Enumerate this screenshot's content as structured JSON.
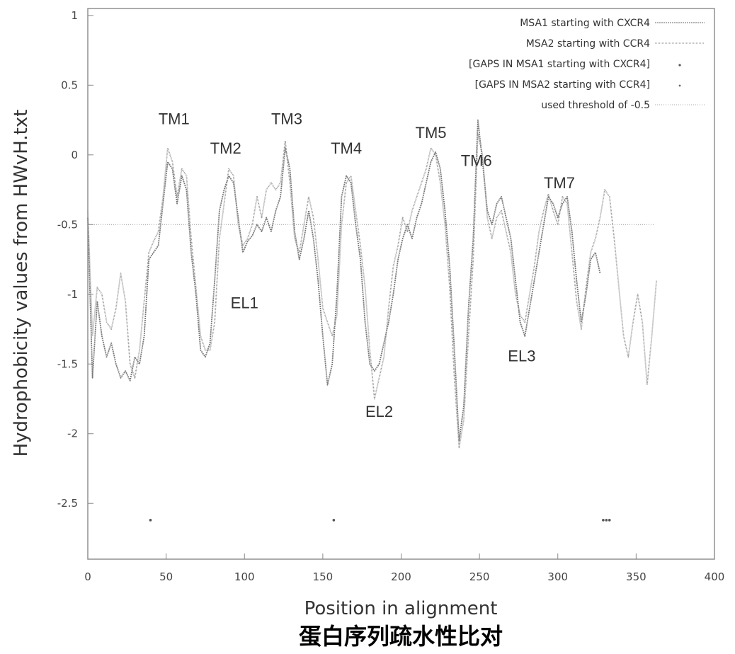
{
  "chart_data": {
    "type": "line",
    "xlabel": "Position in alignment",
    "ylabel": "Hydrophobicity values from HWvH.txt",
    "caption": "蛋白序列疏水性比对",
    "xlim": [
      0,
      400
    ],
    "ylim": [
      -2.9,
      1.05
    ],
    "xticks": [
      0,
      50,
      100,
      150,
      200,
      250,
      300,
      350,
      400
    ],
    "yticks": [
      1,
      0.5,
      0,
      -0.5,
      -1,
      -1.5,
      -2,
      -2.5
    ],
    "threshold": -0.5,
    "legend_position": "top-right",
    "legend": [
      "MSA1 starting with CXCR4",
      "MSA2 starting with CCR4",
      "[GAPS IN MSA1 starting with CXCR4]",
      "[GAPS IN MSA2 starting with CCR4]",
      "used threshold of -0.5"
    ],
    "annotations": [
      {
        "text": "TM1",
        "x": 55,
        "y": 0.22
      },
      {
        "text": "TM2",
        "x": 88,
        "y": 0.01
      },
      {
        "text": "TM3",
        "x": 127,
        "y": 0.22
      },
      {
        "text": "TM4",
        "x": 165,
        "y": 0.01
      },
      {
        "text": "TM5",
        "x": 219,
        "y": 0.12
      },
      {
        "text": "TM6",
        "x": 248,
        "y": -0.08
      },
      {
        "text": "TM7",
        "x": 301,
        "y": -0.24
      },
      {
        "text": "EL1",
        "x": 100,
        "y": -1.1
      },
      {
        "text": "EL2",
        "x": 186,
        "y": -1.88
      },
      {
        "text": "EL3",
        "x": 277,
        "y": -1.48
      }
    ],
    "series": [
      {
        "values": [
          [
            0,
            -0.45
          ],
          [
            3,
            -1.6
          ],
          [
            6,
            -1.05
          ],
          [
            9,
            -1.3
          ],
          [
            12,
            -1.45
          ],
          [
            15,
            -1.35
          ],
          [
            18,
            -1.5
          ],
          [
            21,
            -1.6
          ],
          [
            24,
            -1.55
          ],
          [
            27,
            -1.62
          ],
          [
            30,
            -1.45
          ],
          [
            33,
            -1.5
          ],
          [
            36,
            -1.3
          ],
          [
            39,
            -0.75
          ],
          [
            42,
            -0.7
          ],
          [
            45,
            -0.65
          ],
          [
            48,
            -0.35
          ],
          [
            51,
            -0.05
          ],
          [
            54,
            -0.1
          ],
          [
            57,
            -0.35
          ],
          [
            60,
            -0.15
          ],
          [
            63,
            -0.25
          ],
          [
            66,
            -0.7
          ],
          [
            69,
            -1.0
          ],
          [
            72,
            -1.4
          ],
          [
            75,
            -1.45
          ],
          [
            78,
            -1.35
          ],
          [
            81,
            -0.9
          ],
          [
            84,
            -0.4
          ],
          [
            87,
            -0.25
          ],
          [
            90,
            -0.15
          ],
          [
            93,
            -0.2
          ],
          [
            96,
            -0.45
          ],
          [
            99,
            -0.7
          ],
          [
            102,
            -0.62
          ],
          [
            105,
            -0.58
          ],
          [
            108,
            -0.5
          ],
          [
            111,
            -0.55
          ],
          [
            114,
            -0.45
          ],
          [
            117,
            -0.55
          ],
          [
            120,
            -0.4
          ],
          [
            123,
            -0.3
          ],
          [
            126,
            0.05
          ],
          [
            129,
            -0.1
          ],
          [
            132,
            -0.55
          ],
          [
            135,
            -0.75
          ],
          [
            138,
            -0.6
          ],
          [
            141,
            -0.4
          ],
          [
            144,
            -0.6
          ],
          [
            147,
            -0.9
          ],
          [
            150,
            -1.3
          ],
          [
            153,
            -1.65
          ],
          [
            156,
            -1.5
          ],
          [
            159,
            -1.0
          ],
          [
            162,
            -0.3
          ],
          [
            165,
            -0.15
          ],
          [
            168,
            -0.2
          ],
          [
            171,
            -0.5
          ],
          [
            174,
            -0.75
          ],
          [
            177,
            -1.2
          ],
          [
            180,
            -1.5
          ],
          [
            183,
            -1.55
          ],
          [
            186,
            -1.5
          ],
          [
            189,
            -1.35
          ],
          [
            192,
            -1.2
          ],
          [
            195,
            -1.0
          ],
          [
            198,
            -0.75
          ],
          [
            201,
            -0.6
          ],
          [
            204,
            -0.5
          ],
          [
            207,
            -0.6
          ],
          [
            210,
            -0.45
          ],
          [
            213,
            -0.35
          ],
          [
            216,
            -0.2
          ],
          [
            219,
            -0.05
          ],
          [
            222,
            0.02
          ],
          [
            225,
            -0.1
          ],
          [
            228,
            -0.4
          ],
          [
            231,
            -0.8
          ],
          [
            234,
            -1.4
          ],
          [
            237,
            -2.05
          ],
          [
            240,
            -1.8
          ],
          [
            243,
            -1.1
          ],
          [
            246,
            -0.6
          ],
          [
            249,
            0.25
          ],
          [
            252,
            -0.05
          ],
          [
            255,
            -0.4
          ],
          [
            258,
            -0.5
          ],
          [
            261,
            -0.35
          ],
          [
            264,
            -0.3
          ],
          [
            267,
            -0.45
          ],
          [
            270,
            -0.6
          ],
          [
            273,
            -0.9
          ],
          [
            276,
            -1.2
          ],
          [
            279,
            -1.3
          ],
          [
            282,
            -1.1
          ],
          [
            285,
            -0.9
          ],
          [
            288,
            -0.7
          ],
          [
            291,
            -0.5
          ],
          [
            294,
            -0.3
          ],
          [
            297,
            -0.35
          ],
          [
            300,
            -0.45
          ],
          [
            303,
            -0.35
          ],
          [
            306,
            -0.3
          ],
          [
            309,
            -0.55
          ],
          [
            312,
            -0.9
          ],
          [
            315,
            -1.2
          ],
          [
            318,
            -1.0
          ],
          [
            321,
            -0.75
          ],
          [
            324,
            -0.7
          ],
          [
            327,
            -0.85
          ]
        ]
      },
      {
        "values": [
          [
            0,
            -0.4
          ],
          [
            3,
            -1.3
          ],
          [
            6,
            -0.95
          ],
          [
            9,
            -1.0
          ],
          [
            12,
            -1.2
          ],
          [
            15,
            -1.25
          ],
          [
            18,
            -1.1
          ],
          [
            21,
            -0.85
          ],
          [
            24,
            -1.05
          ],
          [
            27,
            -1.5
          ],
          [
            30,
            -1.6
          ],
          [
            33,
            -1.4
          ],
          [
            36,
            -1.05
          ],
          [
            39,
            -0.7
          ],
          [
            42,
            -0.62
          ],
          [
            45,
            -0.55
          ],
          [
            48,
            -0.3
          ],
          [
            51,
            0.05
          ],
          [
            54,
            -0.05
          ],
          [
            57,
            -0.3
          ],
          [
            60,
            -0.1
          ],
          [
            63,
            -0.15
          ],
          [
            66,
            -0.6
          ],
          [
            69,
            -0.95
          ],
          [
            72,
            -1.3
          ],
          [
            75,
            -1.4
          ],
          [
            78,
            -1.4
          ],
          [
            81,
            -1.2
          ],
          [
            84,
            -0.6
          ],
          [
            87,
            -0.35
          ],
          [
            90,
            -0.1
          ],
          [
            93,
            -0.15
          ],
          [
            96,
            -0.5
          ],
          [
            99,
            -0.65
          ],
          [
            102,
            -0.6
          ],
          [
            105,
            -0.5
          ],
          [
            108,
            -0.3
          ],
          [
            111,
            -0.45
          ],
          [
            114,
            -0.25
          ],
          [
            117,
            -0.2
          ],
          [
            120,
            -0.25
          ],
          [
            123,
            -0.2
          ],
          [
            126,
            0.1
          ],
          [
            129,
            -0.2
          ],
          [
            132,
            -0.6
          ],
          [
            135,
            -0.7
          ],
          [
            138,
            -0.5
          ],
          [
            141,
            -0.3
          ],
          [
            144,
            -0.45
          ],
          [
            147,
            -0.75
          ],
          [
            150,
            -1.1
          ],
          [
            153,
            -1.2
          ],
          [
            156,
            -1.3
          ],
          [
            159,
            -1.15
          ],
          [
            162,
            -0.5
          ],
          [
            165,
            -0.2
          ],
          [
            168,
            -0.15
          ],
          [
            171,
            -0.4
          ],
          [
            174,
            -0.65
          ],
          [
            177,
            -0.95
          ],
          [
            180,
            -1.4
          ],
          [
            183,
            -1.75
          ],
          [
            186,
            -1.6
          ],
          [
            189,
            -1.45
          ],
          [
            192,
            -1.1
          ],
          [
            195,
            -0.8
          ],
          [
            198,
            -0.65
          ],
          [
            201,
            -0.45
          ],
          [
            204,
            -0.55
          ],
          [
            207,
            -0.4
          ],
          [
            210,
            -0.3
          ],
          [
            213,
            -0.2
          ],
          [
            216,
            -0.1
          ],
          [
            219,
            0.05
          ],
          [
            222,
            0.0
          ],
          [
            225,
            -0.2
          ],
          [
            228,
            -0.5
          ],
          [
            231,
            -0.95
          ],
          [
            234,
            -1.6
          ],
          [
            237,
            -2.1
          ],
          [
            240,
            -1.9
          ],
          [
            243,
            -1.3
          ],
          [
            246,
            -0.75
          ],
          [
            249,
            0.15
          ],
          [
            252,
            0.0
          ],
          [
            255,
            -0.45
          ],
          [
            258,
            -0.6
          ],
          [
            261,
            -0.45
          ],
          [
            264,
            -0.4
          ],
          [
            267,
            -0.55
          ],
          [
            270,
            -0.7
          ],
          [
            273,
            -1.0
          ],
          [
            276,
            -1.15
          ],
          [
            279,
            -1.2
          ],
          [
            282,
            -1.0
          ],
          [
            285,
            -0.8
          ],
          [
            288,
            -0.55
          ],
          [
            291,
            -0.4
          ],
          [
            294,
            -0.28
          ],
          [
            297,
            -0.4
          ],
          [
            300,
            -0.5
          ],
          [
            303,
            -0.3
          ],
          [
            306,
            -0.35
          ],
          [
            309,
            -0.7
          ],
          [
            312,
            -1.05
          ],
          [
            315,
            -1.25
          ],
          [
            318,
            -0.95
          ],
          [
            321,
            -0.7
          ],
          [
            324,
            -0.6
          ],
          [
            327,
            -0.45
          ],
          [
            330,
            -0.25
          ],
          [
            333,
            -0.3
          ],
          [
            336,
            -0.6
          ],
          [
            339,
            -0.95
          ],
          [
            342,
            -1.3
          ],
          [
            345,
            -1.45
          ],
          [
            348,
            -1.2
          ],
          [
            351,
            -1.0
          ],
          [
            354,
            -1.2
          ],
          [
            357,
            -1.65
          ],
          [
            360,
            -1.3
          ],
          [
            363,
            -0.9
          ]
        ]
      }
    ],
    "gap_points": [
      [
        40,
        -2.62
      ],
      [
        157,
        -2.62
      ],
      [
        329,
        -2.62
      ],
      [
        331,
        -2.62
      ],
      [
        333,
        -2.62
      ]
    ]
  }
}
